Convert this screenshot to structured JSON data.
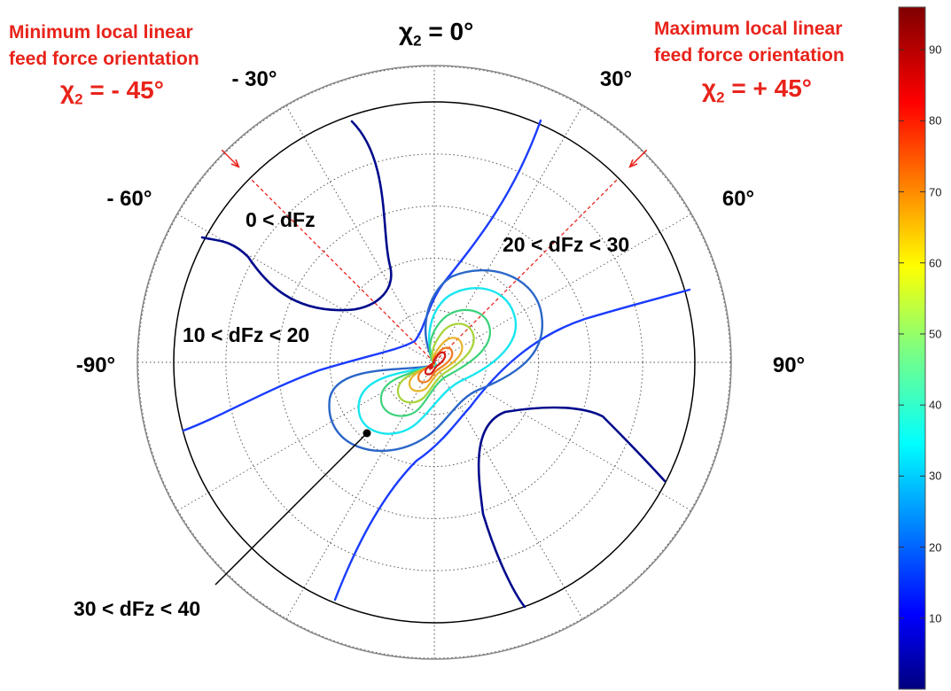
{
  "chart_data": {
    "type": "contour",
    "projection": "polar",
    "angular_axis": {
      "tick_labels": [
        "χ2 = 0°",
        "30°",
        "60°",
        "90°",
        "- 30°",
        "- 60°",
        "-90°"
      ]
    },
    "grid": true,
    "colorbar": {
      "placement": "right",
      "range": [
        0,
        96
      ],
      "ticks": [
        10,
        20,
        30,
        40,
        50,
        60,
        70,
        80,
        90
      ],
      "colormap": "jet"
    },
    "contour_levels": [
      10,
      20,
      30,
      40,
      50,
      60,
      70,
      80,
      90
    ],
    "annotations": {
      "min_title_line1": "Minimum local  linear",
      "min_title_line2": "feed force orientation",
      "min_chi": "χ",
      "min_chi_sub": "2",
      "min_chi_value": " = - 45°",
      "max_title_line1": "Maximum local linear",
      "max_title_line2": "feed force orientation",
      "max_chi": "χ",
      "max_chi_sub": "2",
      "max_chi_value": " = + 45°",
      "top_chi": "χ",
      "top_chi_sub": "2",
      "top_value": " = 0°",
      "region_1": "0 < dFz",
      "region_2": "10 < dFz < 20",
      "region_3": "20 < dFz < 30",
      "region_4": "30 < dFz < 40"
    },
    "orientation_lines": [
      {
        "angle_deg": -45,
        "label": "Minimum local  linear feed force orientation"
      },
      {
        "angle_deg": 45,
        "label": "Maximum local linear feed force orientation"
      }
    ]
  },
  "colors": {
    "accent_red": "#e8231a",
    "level_10": "#000a8c",
    "level_20": "#1a3cff",
    "level_30": "#2a66c8",
    "level_40": "#18e6f0",
    "level_50": "#3ad27a",
    "level_60": "#a7d43a",
    "level_70": "#e6b52a",
    "level_80": "#f07a1e",
    "level_90": "#d41a12"
  }
}
